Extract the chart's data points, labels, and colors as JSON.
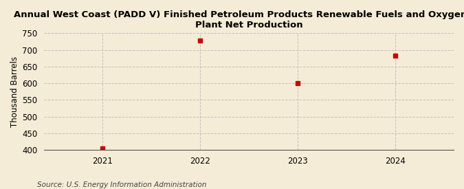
{
  "title_line1": "Annual West Coast (PADD V) Finished Petroleum Products Renewable Fuels and Oxygenate",
  "title_line2": "Plant Net Production",
  "ylabel": "Thousand Barrels",
  "source": "Source: U.S. Energy Information Administration",
  "x_values": [
    2021,
    2022,
    2023,
    2024
  ],
  "y_values": [
    405,
    729,
    601,
    683
  ],
  "xlim": [
    2020.4,
    2024.6
  ],
  "ylim": [
    400,
    750
  ],
  "yticks": [
    400,
    450,
    500,
    550,
    600,
    650,
    700,
    750
  ],
  "xticks": [
    2021,
    2022,
    2023,
    2024
  ],
  "marker_color": "#cc0000",
  "marker_size": 4,
  "grid_color": "#bbbbbb",
  "background_color": "#f5ecd7",
  "title_fontsize": 9.5,
  "axis_fontsize": 8.5,
  "source_fontsize": 7.5
}
